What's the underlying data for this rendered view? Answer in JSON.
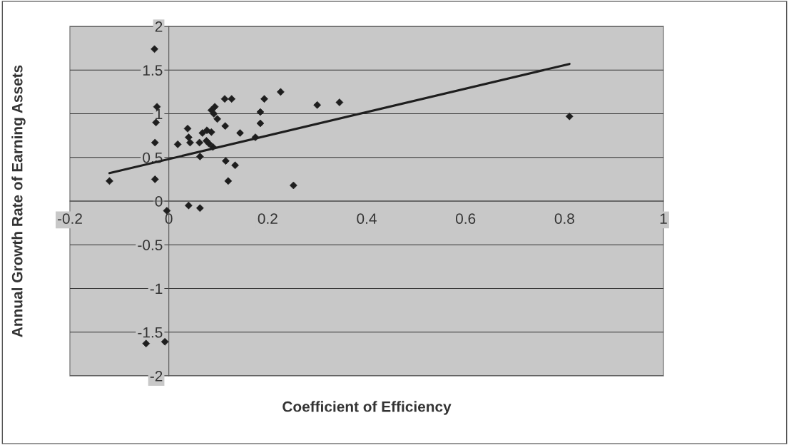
{
  "chart_data": {
    "type": "scatter",
    "xlabel": "Coefficient of Efficiency",
    "ylabel": "Annual Growth Rate of Earning Assets",
    "xlim": [
      -0.2,
      1
    ],
    "ylim": [
      -2,
      2
    ],
    "xticks": [
      -0.2,
      0,
      0.2,
      0.4,
      0.6,
      0.8,
      1
    ],
    "yticks": [
      -2,
      -1.5,
      -1,
      -0.5,
      0,
      0.5,
      1,
      1.5,
      2
    ],
    "grid": "y",
    "legend": false,
    "series": [
      {
        "color": "#1e1e1e",
        "marker": "diamond",
        "x": [
          -0.12,
          -0.029,
          -0.024,
          -0.026,
          -0.028,
          -0.028,
          -0.004,
          0.04,
          0.063,
          0.018,
          0.038,
          0.04,
          0.043,
          0.062,
          0.063,
          0.068,
          0.077,
          0.086,
          0.076,
          0.081,
          0.089,
          0.086,
          0.093,
          0.091,
          0.098,
          0.114,
          0.113,
          0.127,
          0.115,
          0.134,
          0.12,
          0.144,
          0.175,
          0.185,
          0.185,
          0.193,
          0.226,
          0.252,
          0.3,
          0.345,
          0.81,
          -0.046,
          -0.008
        ],
        "values": [
          0.23,
          1.74,
          1.08,
          0.9,
          0.67,
          0.25,
          -0.11,
          -0.05,
          -0.08,
          0.65,
          0.83,
          0.73,
          0.67,
          0.67,
          0.51,
          0.78,
          0.81,
          0.79,
          0.69,
          0.66,
          0.62,
          1.04,
          1.08,
          1.0,
          0.94,
          0.86,
          1.17,
          1.17,
          0.46,
          0.41,
          0.23,
          0.78,
          0.73,
          0.89,
          1.02,
          1.17,
          1.25,
          0.18,
          1.1,
          1.13,
          0.97,
          -1.63,
          -1.61
        ]
      },
      {
        "type": "line",
        "color": "#1e1e1e",
        "line_style": "solid",
        "x": [
          -0.12,
          0.81
        ],
        "values": [
          0.32,
          1.57
        ]
      }
    ]
  }
}
